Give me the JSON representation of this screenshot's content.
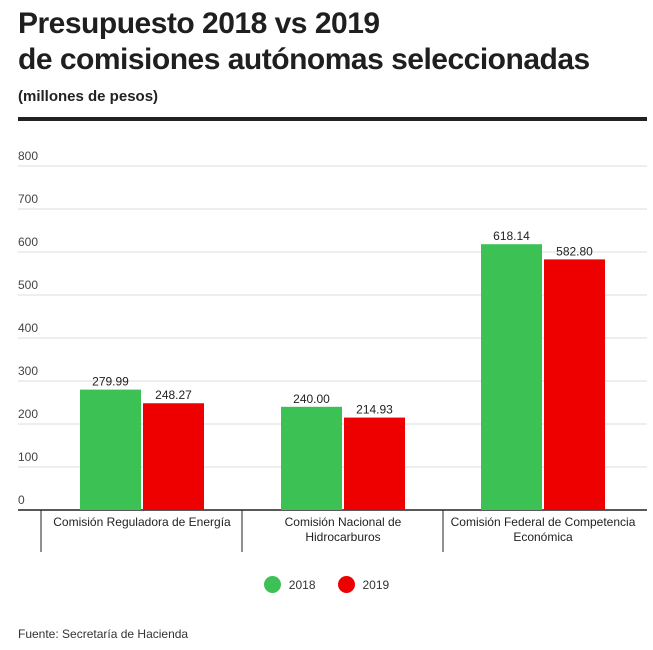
{
  "header": {
    "title_line1": "Presupuesto 2018 vs 2019",
    "title_line2": "de comisiones autónomas seleccionadas",
    "subtitle": "(millones de pesos)"
  },
  "footer": {
    "source": "Fuente: Secretaría de Hacienda"
  },
  "chart_data": {
    "type": "bar",
    "title": "Presupuesto 2018 vs 2019 de comisiones autónomas seleccionadas",
    "ylabel": "(millones de pesos)",
    "ylim": [
      0,
      800
    ],
    "yticks": [
      "0",
      "100",
      "200",
      "300",
      "400",
      "500",
      "600",
      "700",
      "800"
    ],
    "grid": true,
    "legend_position": "bottom-center",
    "categories": [
      [
        "Comisión Reguladora de Energía"
      ],
      [
        "Comisión Nacional de",
        "Hidrocarburos"
      ],
      [
        "Comisión Federal de Competencia",
        "Económica"
      ]
    ],
    "series": [
      {
        "name": "2018",
        "color": "#3cc154",
        "values": [
          279.99,
          240.0,
          618.14
        ],
        "labels": [
          "279.99",
          "240.00",
          "618.14"
        ]
      },
      {
        "name": "2019",
        "color": "#ee0000",
        "values": [
          248.27,
          214.93,
          582.8
        ],
        "labels": [
          "248.27",
          "214.93",
          "582.80"
        ]
      }
    ]
  }
}
